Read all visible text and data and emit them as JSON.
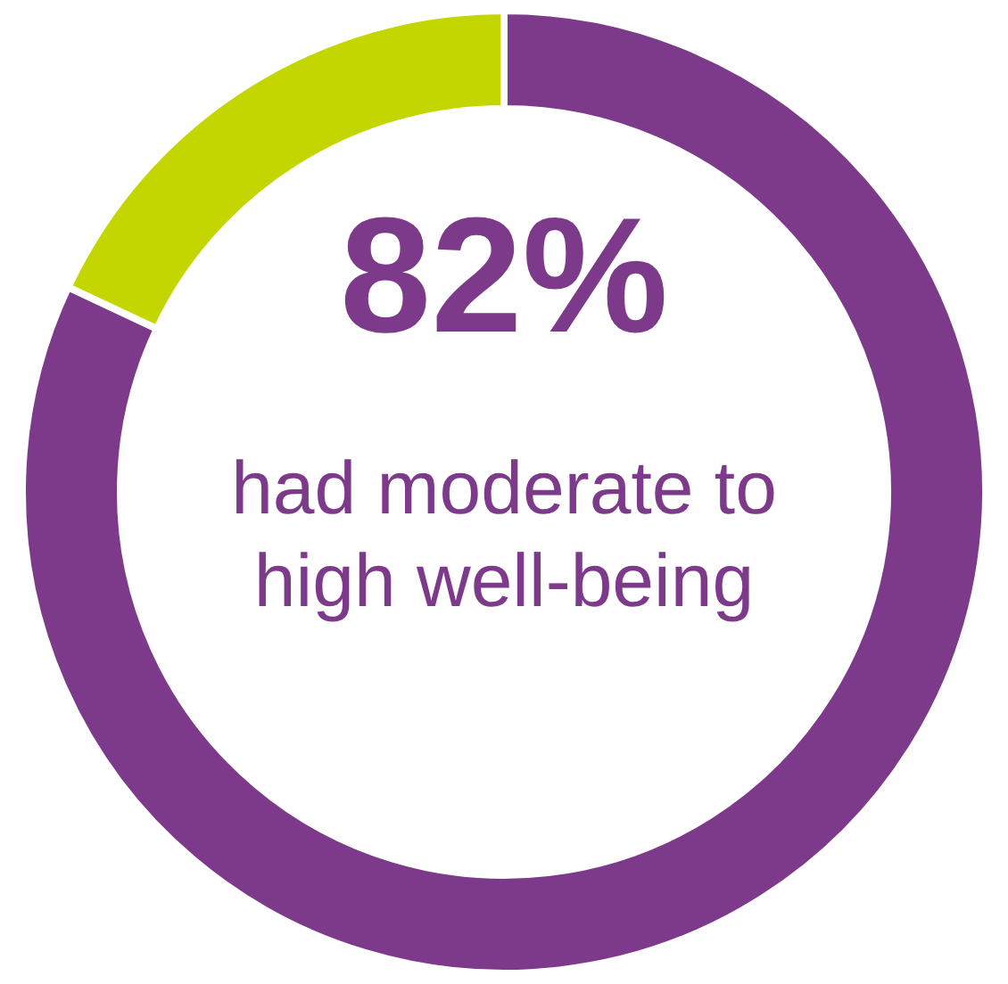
{
  "chart_data": {
    "type": "donut",
    "categories": [
      null,
      null
    ],
    "values": [
      82,
      18
    ],
    "colors": [
      "#7d3a8a",
      "#c4d600"
    ],
    "annotations": [
      "82%",
      "had moderate to high well-being"
    ]
  }
}
